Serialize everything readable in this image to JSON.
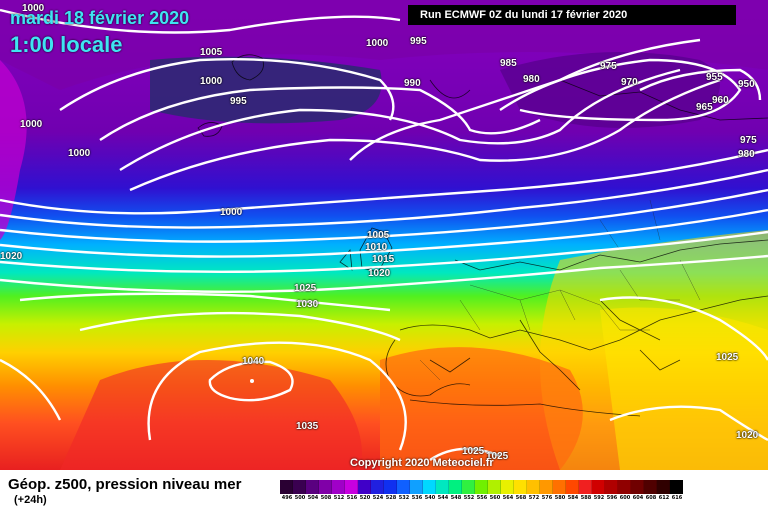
{
  "header": {
    "date": "mardi 18 février 2020",
    "time": "1:00 locale",
    "run": "Run ECMWF 0Z du lundi 17 février 2020"
  },
  "copyright": "Copyright 2020 Meteociel.fr",
  "footer": {
    "title": "Géop. z500, pression niveau mer",
    "subtitle": "(+24h)"
  },
  "legend": {
    "values": [
      "496",
      "500",
      "504",
      "508",
      "512",
      "516",
      "520",
      "524",
      "528",
      "532",
      "536",
      "540",
      "544",
      "548",
      "552",
      "556",
      "560",
      "564",
      "568",
      "572",
      "576",
      "580",
      "584",
      "588",
      "592",
      "596",
      "600",
      "604",
      "608",
      "612",
      "616"
    ],
    "colors": [
      "#2a0033",
      "#3a0050",
      "#5a0080",
      "#8000a8",
      "#a000c8",
      "#c800e0",
      "#4000c8",
      "#2020e0",
      "#1030f0",
      "#1060ff",
      "#10a0ff",
      "#00d8ff",
      "#00e8c0",
      "#00f080",
      "#30f040",
      "#70f000",
      "#b0f000",
      "#e8f000",
      "#ffe000",
      "#ffc000",
      "#ff9800",
      "#ff7000",
      "#ff4800",
      "#f02020",
      "#d00000",
      "#b00000",
      "#900000",
      "#700000",
      "#500000",
      "#300000",
      "#000000"
    ]
  },
  "isobar_labels": [
    {
      "text": "1000"
    },
    {
      "text": "1005"
    },
    {
      "text": "1000"
    },
    {
      "text": "995"
    },
    {
      "text": "1000"
    },
    {
      "text": "1000"
    },
    {
      "text": "1000"
    },
    {
      "text": "995"
    },
    {
      "text": "990"
    },
    {
      "text": "985"
    },
    {
      "text": "980"
    },
    {
      "text": "975"
    },
    {
      "text": "970"
    },
    {
      "text": "955"
    },
    {
      "text": "950"
    },
    {
      "text": "960"
    },
    {
      "text": "965"
    },
    {
      "text": "975"
    },
    {
      "text": "980"
    },
    {
      "text": "1000"
    },
    {
      "text": "1020"
    },
    {
      "text": "1005"
    },
    {
      "text": "1010"
    },
    {
      "text": "1015"
    },
    {
      "text": "1020"
    },
    {
      "text": "1025"
    },
    {
      "text": "1030"
    },
    {
      "text": "1040"
    },
    {
      "text": "1035"
    },
    {
      "text": "1025"
    },
    {
      "text": "1025"
    },
    {
      "text": "1020"
    },
    {
      "text": "1025"
    },
    {
      "text": "1000"
    }
  ]
}
